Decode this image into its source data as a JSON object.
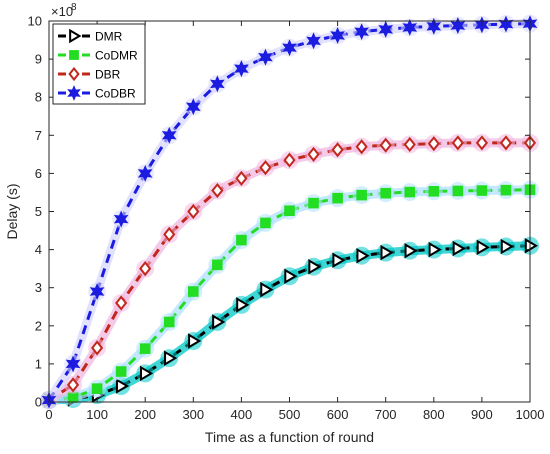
{
  "chart_data": {
    "type": "line",
    "title": "",
    "xlabel": "Time as a function of round",
    "ylabel": "Delay (s)",
    "y_exponent_label": "×10",
    "y_exponent_power": "8",
    "xlim": [
      0,
      1000
    ],
    "ylim": [
      0,
      10
    ],
    "y_multiplier": 100000000,
    "xticks": [
      0,
      100,
      200,
      300,
      400,
      500,
      600,
      700,
      800,
      900,
      1000
    ],
    "yticks": [
      0,
      1,
      2,
      3,
      4,
      5,
      6,
      7,
      8,
      9,
      10
    ],
    "grid": false,
    "legend_position": "top-left",
    "x": [
      0,
      50,
      100,
      150,
      200,
      250,
      300,
      350,
      400,
      450,
      500,
      550,
      600,
      650,
      700,
      750,
      800,
      850,
      900,
      950,
      1000
    ],
    "series": [
      {
        "name": "DMR",
        "color": "#000000",
        "marker": "triangle-right",
        "marker_face": "#ffffff",
        "glow": "#00c8c8",
        "values": [
          0.05,
          0.08,
          0.18,
          0.42,
          0.75,
          1.15,
          1.6,
          2.1,
          2.55,
          2.95,
          3.3,
          3.55,
          3.72,
          3.84,
          3.92,
          3.97,
          4.0,
          4.03,
          4.06,
          4.08,
          4.1
        ]
      },
      {
        "name": "CoDMR",
        "color": "#22dd22",
        "marker": "square",
        "marker_face": "#22dd22",
        "glow": "#b0e0ff",
        "values": [
          0.05,
          0.12,
          0.35,
          0.8,
          1.4,
          2.1,
          2.9,
          3.6,
          4.25,
          4.7,
          5.02,
          5.22,
          5.35,
          5.43,
          5.48,
          5.51,
          5.53,
          5.54,
          5.55,
          5.56,
          5.57
        ]
      },
      {
        "name": "DBR",
        "color": "#c0281c",
        "marker": "diamond",
        "marker_face": "#ffffff",
        "glow": "#f2b8e0",
        "values": [
          0.05,
          0.45,
          1.42,
          2.6,
          3.5,
          4.4,
          5.0,
          5.55,
          5.87,
          6.15,
          6.35,
          6.5,
          6.62,
          6.7,
          6.74,
          6.76,
          6.78,
          6.8,
          6.8,
          6.8,
          6.8
        ]
      },
      {
        "name": "CoDBR",
        "color": "#1c1ce0",
        "marker": "hexagram",
        "marker_face": "#1c1ce0",
        "glow": "#d8d8ff",
        "values": [
          0.05,
          1.0,
          2.9,
          4.8,
          6.0,
          7.0,
          7.75,
          8.35,
          8.75,
          9.05,
          9.3,
          9.48,
          9.62,
          9.72,
          9.78,
          9.83,
          9.86,
          9.88,
          9.9,
          9.92,
          9.93
        ]
      }
    ]
  }
}
